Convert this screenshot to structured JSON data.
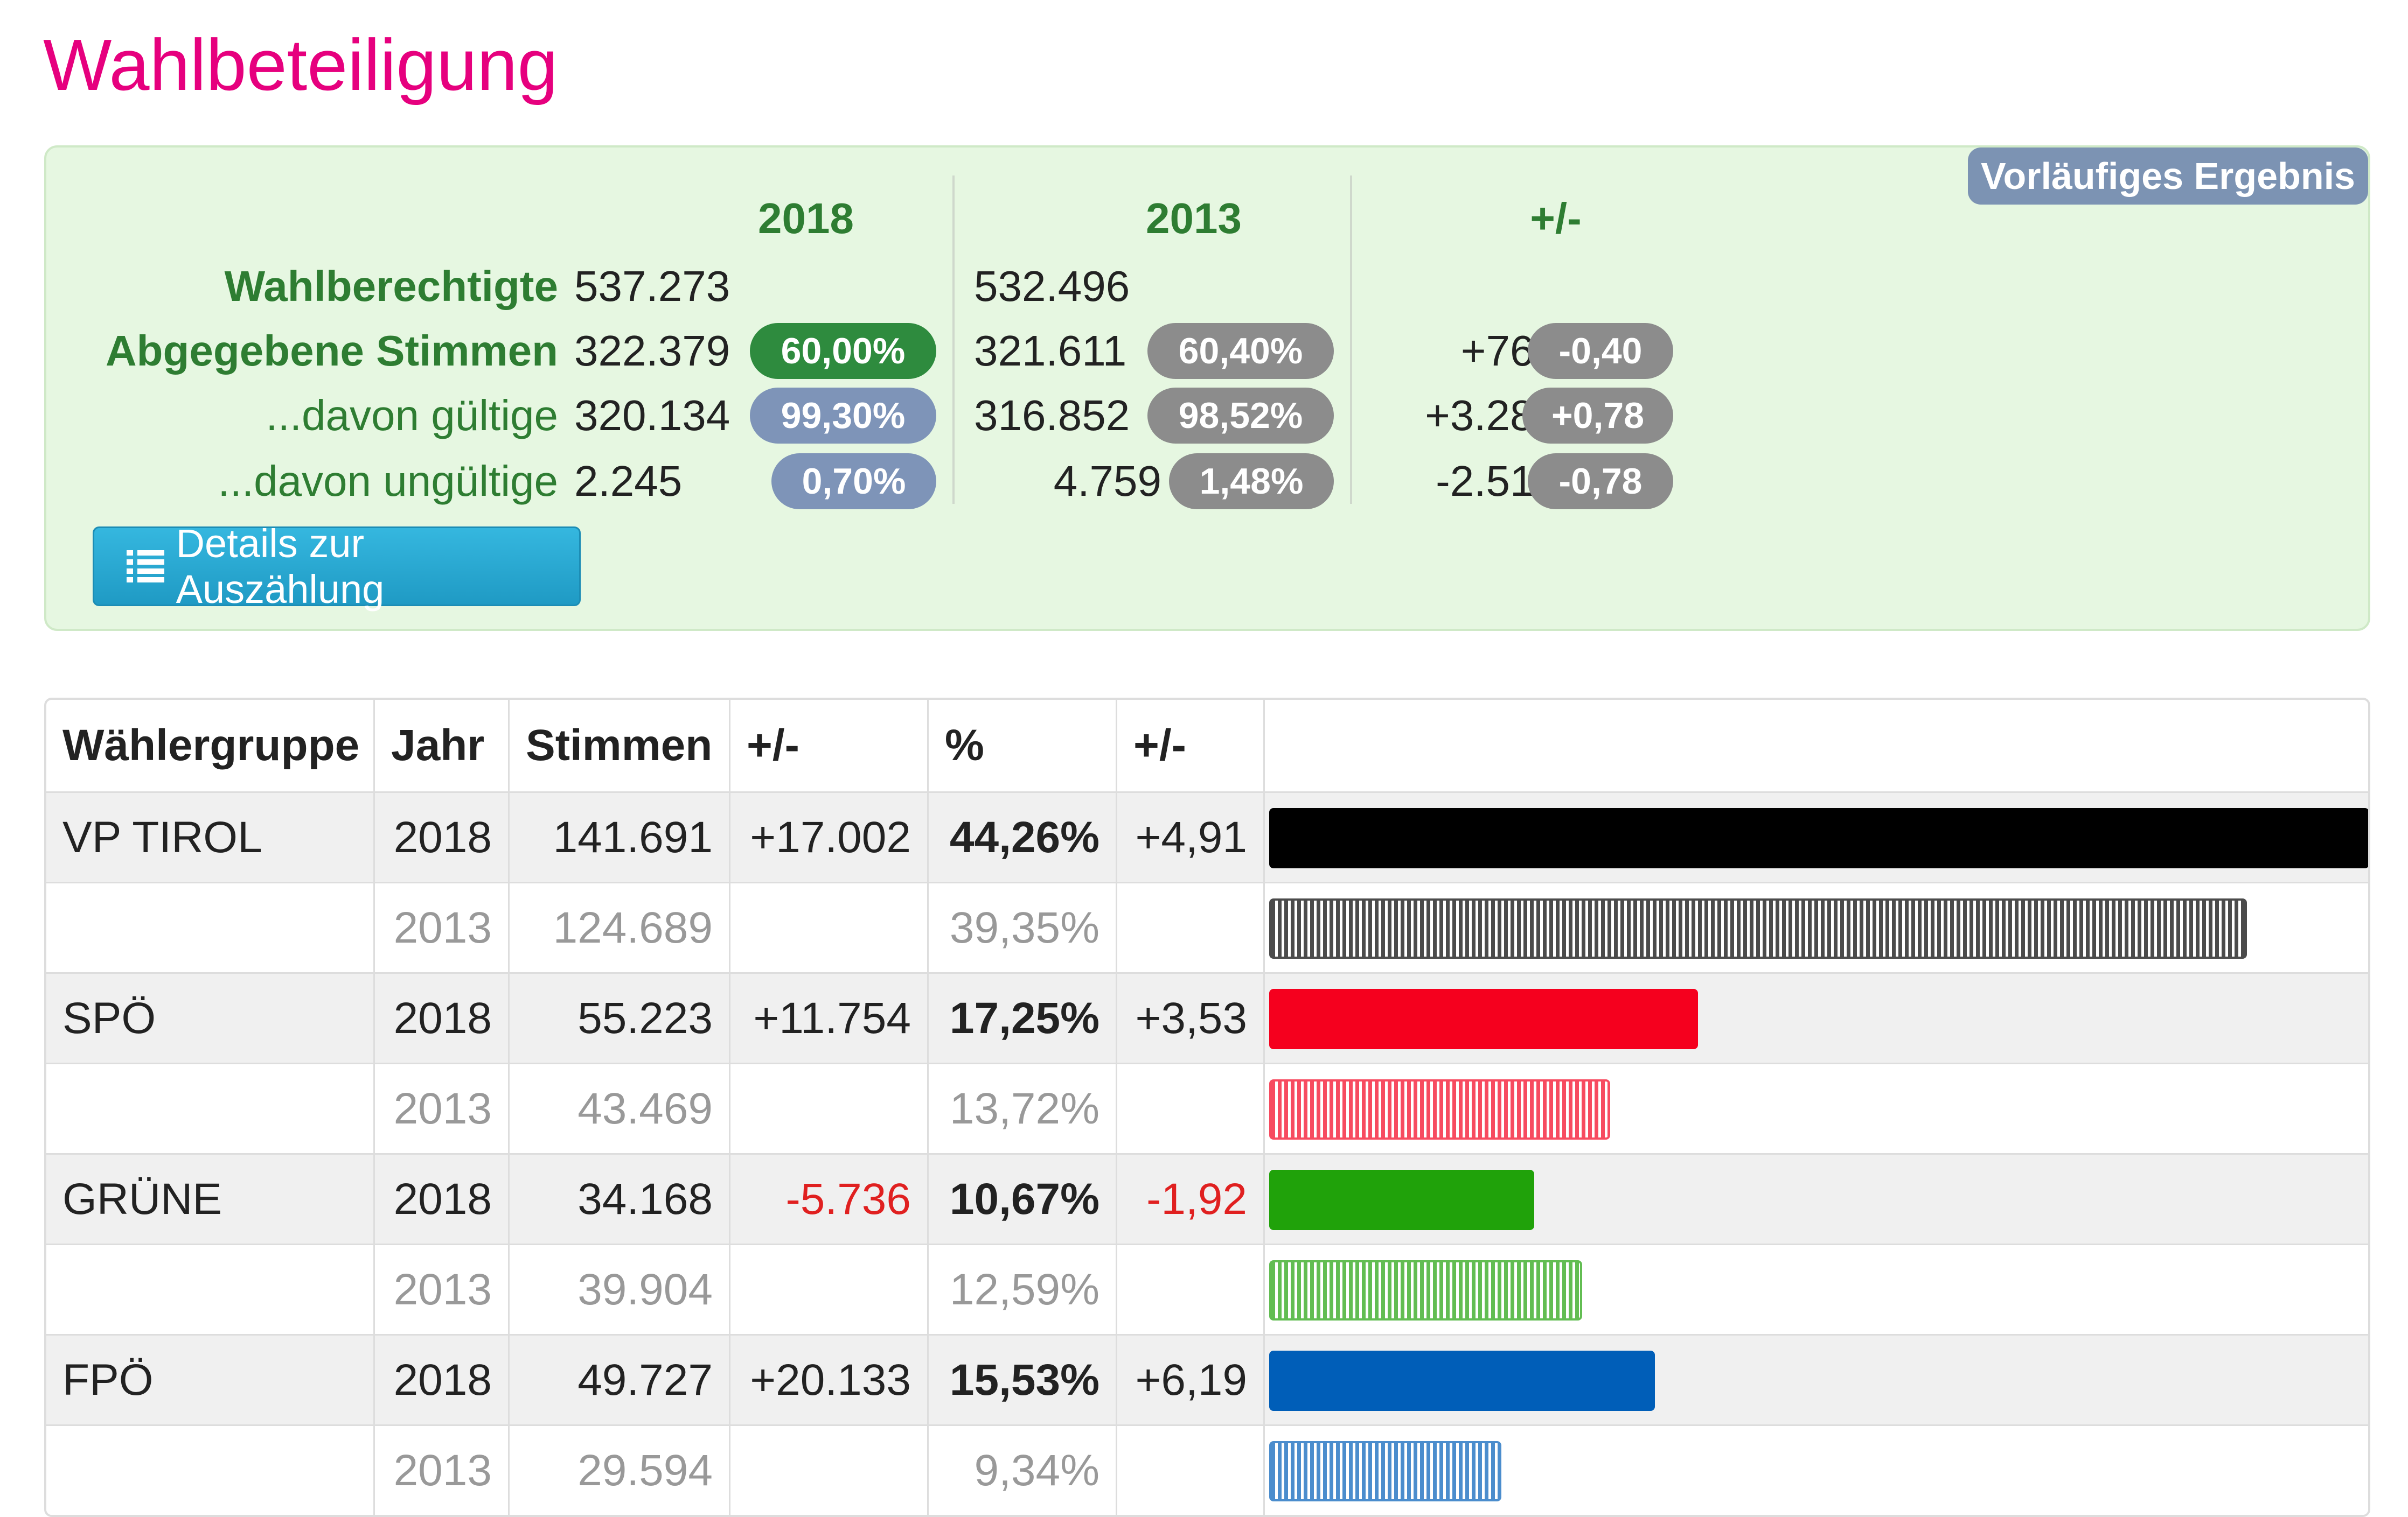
{
  "title": "Wahlbeteiligung",
  "turnout": {
    "badge": "Vorläufiges Ergebnis",
    "headers": {
      "y2018": "2018",
      "y2013": "2013",
      "diff": "+/-"
    },
    "rows": [
      {
        "label": "Wahlberechtigte",
        "v2018": "537.273",
        "p2018": "",
        "v2013": "532.496",
        "p2013": "",
        "diff": "",
        "pdiff": ""
      },
      {
        "label": "Abgegebene Stimmen",
        "v2018": "322.379",
        "p2018": "60,00%",
        "v2013": "321.611",
        "p2013": "60,40%",
        "diff": "+768",
        "pdiff": "-0,40"
      },
      {
        "label": "...davon gültige",
        "v2018": "320.134",
        "p2018": "99,30%",
        "v2013": "316.852",
        "p2013": "98,52%",
        "diff": "+3.282",
        "pdiff": "+0,78"
      },
      {
        "label": "...davon ungültige",
        "v2018": "2.245",
        "p2018": "0,70%",
        "v2013": "4.759",
        "p2013": "1,48%",
        "diff": "-2.514",
        "pdiff": "-0,78"
      }
    ],
    "details_button": "Details zur Auszählung"
  },
  "results": {
    "columns": [
      "Wählergruppe",
      "Jahr",
      "Stimmen",
      "+/-",
      "%",
      "+/-",
      ""
    ],
    "scale_max_percent": 44.26,
    "rows": [
      {
        "group": "VP TIROL",
        "year": "2018",
        "votes": "141.691",
        "diff": "+17.002",
        "pct": "44,26%",
        "pdiff": "+4,91",
        "percent": 44.26,
        "color": "#000000",
        "neg": false
      },
      {
        "group": "",
        "year": "2013",
        "votes": "124.689",
        "diff": "",
        "pct": "39,35%",
        "pdiff": "",
        "percent": 39.35,
        "color": "#000000",
        "neg": false
      },
      {
        "group": "SPÖ",
        "year": "2018",
        "votes": "55.223",
        "diff": "+11.754",
        "pct": "17,25%",
        "pdiff": "+3,53",
        "percent": 17.25,
        "color": "#f5001e",
        "neg": false
      },
      {
        "group": "",
        "year": "2013",
        "votes": "43.469",
        "diff": "",
        "pct": "13,72%",
        "pdiff": "",
        "percent": 13.72,
        "color": "#f5001e",
        "neg": false
      },
      {
        "group": "GRÜNE",
        "year": "2018",
        "votes": "34.168",
        "diff": "-5.736",
        "pct": "10,67%",
        "pdiff": "-1,92",
        "percent": 10.67,
        "color": "#20a20a",
        "neg": true
      },
      {
        "group": "",
        "year": "2013",
        "votes": "39.904",
        "diff": "",
        "pct": "12,59%",
        "pdiff": "",
        "percent": 12.59,
        "color": "#20a20a",
        "neg": false
      },
      {
        "group": "FPÖ",
        "year": "2018",
        "votes": "49.727",
        "diff": "+20.133",
        "pct": "15,53%",
        "pdiff": "+6,19",
        "percent": 15.53,
        "color": "#005eb8",
        "neg": false
      },
      {
        "group": "",
        "year": "2013",
        "votes": "29.594",
        "diff": "",
        "pct": "9,34%",
        "pdiff": "",
        "percent": 9.34,
        "color": "#005eb8",
        "neg": false
      }
    ]
  }
}
